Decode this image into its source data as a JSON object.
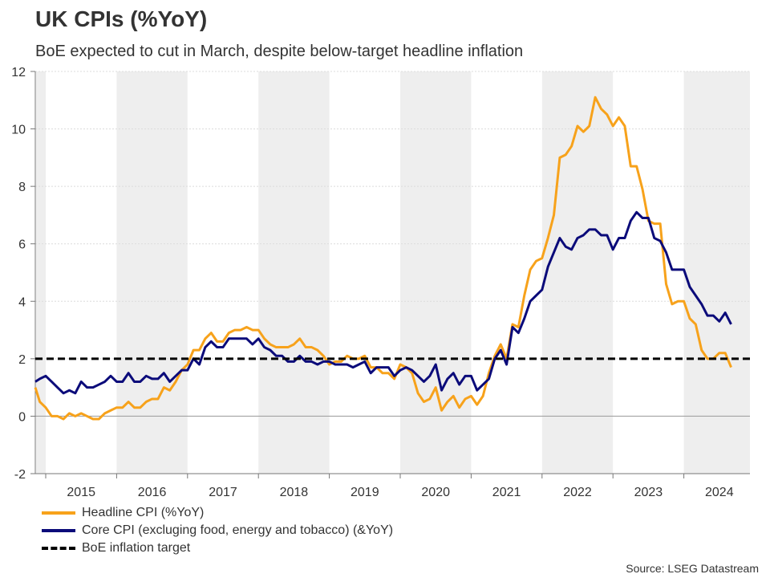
{
  "title": "UK CPIs (%YoY)",
  "subtitle": "BoE expected to cut in March, despite below-target headline inflation",
  "source": "Source: LSEG Datastream",
  "chart_data": {
    "type": "line",
    "start_month": "2014-11",
    "end_month": "2024-09",
    "ylim": [
      -2,
      12
    ],
    "yticks": [
      -2,
      0,
      2,
      4,
      6,
      8,
      10,
      12
    ],
    "xticks": [
      "2015",
      "2016",
      "2017",
      "2018",
      "2019",
      "2020",
      "2021",
      "2022",
      "2023",
      "2024"
    ],
    "grid": true,
    "shaded_years": [
      "2014",
      "2016",
      "2018",
      "2020",
      "2022",
      "2024"
    ],
    "legend_position": "bottom-left",
    "series": [
      {
        "name": "Headline CPI (%YoY)",
        "color": "#F7A21B",
        "values": [
          1.0,
          0.5,
          0.3,
          0.0,
          0.0,
          -0.1,
          0.1,
          0.0,
          0.1,
          0.0,
          -0.1,
          -0.1,
          0.1,
          0.2,
          0.3,
          0.3,
          0.5,
          0.3,
          0.3,
          0.5,
          0.6,
          0.6,
          1.0,
          0.9,
          1.2,
          1.6,
          1.8,
          2.3,
          2.3,
          2.7,
          2.9,
          2.6,
          2.6,
          2.9,
          3.0,
          3.0,
          3.1,
          3.0,
          3.0,
          2.7,
          2.5,
          2.4,
          2.4,
          2.4,
          2.5,
          2.7,
          2.4,
          2.4,
          2.3,
          2.1,
          1.8,
          1.9,
          1.9,
          2.1,
          2.0,
          2.0,
          2.1,
          1.7,
          1.7,
          1.5,
          1.5,
          1.3,
          1.8,
          1.7,
          1.5,
          0.8,
          0.5,
          0.6,
          1.0,
          0.2,
          0.5,
          0.7,
          0.3,
          0.6,
          0.7,
          0.4,
          0.7,
          1.5,
          2.1,
          2.5,
          2.0,
          3.2,
          3.1,
          4.2,
          5.1,
          5.4,
          5.5,
          6.2,
          7.0,
          9.0,
          9.1,
          9.4,
          10.1,
          9.9,
          10.1,
          11.1,
          10.7,
          10.5,
          10.1,
          10.4,
          10.1,
          8.7,
          8.7,
          7.9,
          6.8,
          6.7,
          6.7,
          4.6,
          3.9,
          4.0,
          4.0,
          3.4,
          3.2,
          2.3,
          2.0,
          2.0,
          2.2,
          2.2,
          1.7
        ]
      },
      {
        "name": "Core CPI (excluging food, energy and tobacco) (&YoY)",
        "color": "#0B0B7A",
        "values": [
          1.2,
          1.3,
          1.4,
          1.2,
          1.0,
          0.8,
          0.9,
          0.8,
          1.2,
          1.0,
          1.0,
          1.1,
          1.2,
          1.4,
          1.2,
          1.2,
          1.5,
          1.2,
          1.2,
          1.4,
          1.3,
          1.3,
          1.5,
          1.2,
          1.4,
          1.6,
          1.6,
          2.0,
          1.8,
          2.4,
          2.6,
          2.4,
          2.4,
          2.7,
          2.7,
          2.7,
          2.7,
          2.5,
          2.7,
          2.4,
          2.3,
          2.1,
          2.1,
          1.9,
          1.9,
          2.1,
          1.9,
          1.9,
          1.8,
          1.9,
          1.9,
          1.8,
          1.8,
          1.8,
          1.7,
          1.8,
          1.9,
          1.5,
          1.7,
          1.7,
          1.7,
          1.4,
          1.6,
          1.7,
          1.6,
          1.4,
          1.2,
          1.4,
          1.8,
          0.9,
          1.3,
          1.5,
          1.1,
          1.4,
          1.4,
          0.9,
          1.1,
          1.3,
          2.0,
          2.3,
          1.8,
          3.1,
          2.9,
          3.4,
          4.0,
          4.2,
          4.4,
          5.2,
          5.7,
          6.2,
          5.9,
          5.8,
          6.2,
          6.3,
          6.5,
          6.5,
          6.3,
          6.3,
          5.8,
          6.2,
          6.2,
          6.8,
          7.1,
          6.9,
          6.9,
          6.2,
          6.1,
          5.7,
          5.1,
          5.1,
          5.1,
          4.5,
          4.2,
          3.9,
          3.5,
          3.5,
          3.3,
          3.6,
          3.2
        ]
      },
      {
        "name": "BoE inflation target",
        "color": "#000000",
        "constant": 2
      }
    ]
  }
}
